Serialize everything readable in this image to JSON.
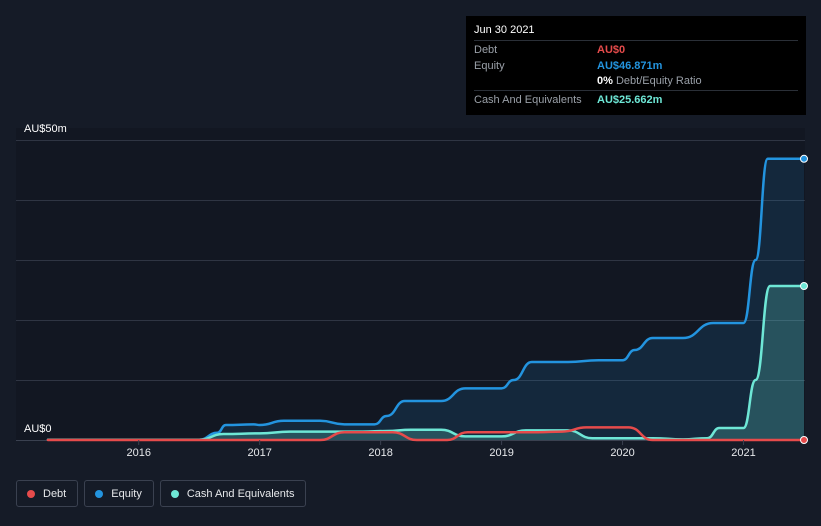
{
  "tooltip": {
    "date": "Jun 30 2021",
    "debt_label": "Debt",
    "debt_value": "AU$0",
    "equity_label": "Equity",
    "equity_value": "AU$46.871m",
    "ratio_value": "0%",
    "ratio_label": "Debt/Equity Ratio",
    "cash_label": "Cash And Equivalents",
    "cash_value": "AU$25.662m"
  },
  "legend": {
    "debt": "Debt",
    "equity": "Equity",
    "cash": "Cash And Equivalents"
  },
  "colors": {
    "background": "#151b27",
    "debt": "#e64b4b",
    "equity": "#2394df",
    "cash": "#6ee7d6",
    "grid": "#2f3543"
  },
  "chart_data": {
    "type": "area",
    "xlabel": "",
    "ylabel": "",
    "y_tick_labels": [
      "AU$50m",
      "AU$0"
    ],
    "ylim": [
      0,
      50
    ],
    "xlim": [
      2015.25,
      2021.5
    ],
    "x_ticks": [
      2016,
      2017,
      2018,
      2019,
      2020,
      2021
    ],
    "x_tick_labels": [
      "2016",
      "2017",
      "2018",
      "2019",
      "2020",
      "2021"
    ],
    "series": [
      {
        "name": "Equity",
        "color": "#2394df",
        "points": [
          [
            2015.25,
            0.05
          ],
          [
            2016.5,
            0.05
          ],
          [
            2016.65,
            1.2
          ],
          [
            2016.72,
            2.5
          ],
          [
            2016.95,
            2.6
          ],
          [
            2017.0,
            2.5
          ],
          [
            2017.2,
            3.2
          ],
          [
            2017.5,
            3.2
          ],
          [
            2017.7,
            2.6
          ],
          [
            2017.95,
            2.6
          ],
          [
            2018.05,
            4.0
          ],
          [
            2018.2,
            6.5
          ],
          [
            2018.5,
            6.5
          ],
          [
            2018.7,
            8.6
          ],
          [
            2019.0,
            8.6
          ],
          [
            2019.1,
            10.0
          ],
          [
            2019.25,
            13.0
          ],
          [
            2019.55,
            13.0
          ],
          [
            2019.8,
            13.3
          ],
          [
            2020.0,
            13.3
          ],
          [
            2020.1,
            15.0
          ],
          [
            2020.25,
            17.0
          ],
          [
            2020.5,
            17.0
          ],
          [
            2020.75,
            19.5
          ],
          [
            2021.0,
            19.5
          ],
          [
            2021.1,
            30.0
          ],
          [
            2021.2,
            46.871
          ],
          [
            2021.5,
            46.871
          ]
        ]
      },
      {
        "name": "Cash And Equivalents",
        "color": "#6ee7d6",
        "points": [
          [
            2015.25,
            0.05
          ],
          [
            2016.5,
            0.05
          ],
          [
            2016.7,
            1.0
          ],
          [
            2017.0,
            1.1
          ],
          [
            2017.25,
            1.4
          ],
          [
            2017.85,
            1.4
          ],
          [
            2018.05,
            1.5
          ],
          [
            2018.25,
            1.7
          ],
          [
            2018.5,
            1.7
          ],
          [
            2018.7,
            0.6
          ],
          [
            2019.0,
            0.6
          ],
          [
            2019.2,
            1.6
          ],
          [
            2019.55,
            1.6
          ],
          [
            2019.75,
            0.3
          ],
          [
            2020.25,
            0.3
          ],
          [
            2020.5,
            0.1
          ],
          [
            2020.7,
            0.3
          ],
          [
            2020.8,
            2.0
          ],
          [
            2021.0,
            2.0
          ],
          [
            2021.1,
            10.0
          ],
          [
            2021.22,
            25.662
          ],
          [
            2021.5,
            25.662
          ]
        ]
      },
      {
        "name": "Debt",
        "color": "#e64b4b",
        "points": [
          [
            2015.25,
            0.0
          ],
          [
            2017.5,
            0.0
          ],
          [
            2017.7,
            1.3
          ],
          [
            2018.1,
            1.3
          ],
          [
            2018.3,
            0.0
          ],
          [
            2018.55,
            0.0
          ],
          [
            2018.72,
            1.3
          ],
          [
            2019.3,
            1.3
          ],
          [
            2019.5,
            1.4
          ],
          [
            2019.7,
            2.1
          ],
          [
            2020.05,
            2.1
          ],
          [
            2020.25,
            0.0
          ],
          [
            2021.5,
            0.0
          ]
        ]
      }
    ]
  }
}
